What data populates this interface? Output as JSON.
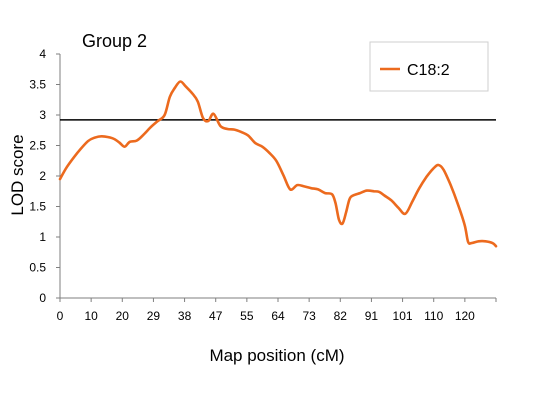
{
  "chart_data": {
    "type": "line",
    "title": "Group 2",
    "xlabel": "Map position (cM)",
    "ylabel": "LOD score",
    "x_ticks": [
      "0",
      "10",
      "20",
      "29",
      "38",
      "47",
      "55",
      "64",
      "73",
      "82",
      "91",
      "101",
      "110",
      "120"
    ],
    "y_ticks": [
      "0",
      "0.5",
      "1",
      "1.5",
      "2",
      "2.5",
      "3",
      "3.5",
      "4"
    ],
    "xlim": [
      0,
      125
    ],
    "ylim": [
      0,
      4
    ],
    "threshold": 2.92,
    "legend_position": "top-right",
    "grid": false,
    "series": [
      {
        "name": "C18:2",
        "color": "#ec6a1e",
        "x": [
          0,
          2,
          5,
          8,
          10,
          12,
          15,
          17,
          18.5,
          20,
          22,
          24,
          26,
          28,
          30,
          31.5,
          33,
          34.5,
          36,
          38,
          39.5,
          41,
          42.5,
          44,
          46,
          48,
          50,
          52,
          54,
          56,
          58,
          60,
          62,
          64,
          66,
          68,
          70,
          72,
          74,
          76,
          78,
          79,
          80,
          81,
          82,
          83,
          84,
          86,
          88,
          90,
          91.5,
          93,
          95,
          97,
          99,
          101,
          103,
          105,
          107,
          108.5,
          110,
          112,
          114,
          116,
          117,
          118,
          120,
          122,
          124,
          125
        ],
        "values": [
          1.95,
          2.15,
          2.38,
          2.57,
          2.63,
          2.65,
          2.62,
          2.55,
          2.48,
          2.56,
          2.58,
          2.68,
          2.8,
          2.9,
          3.0,
          3.3,
          3.45,
          3.55,
          3.47,
          3.35,
          3.22,
          2.95,
          2.9,
          3.02,
          2.82,
          2.77,
          2.76,
          2.72,
          2.66,
          2.54,
          2.48,
          2.38,
          2.25,
          2.02,
          1.78,
          1.85,
          1.83,
          1.8,
          1.78,
          1.72,
          1.7,
          1.55,
          1.28,
          1.22,
          1.4,
          1.62,
          1.68,
          1.72,
          1.76,
          1.75,
          1.74,
          1.68,
          1.6,
          1.48,
          1.38,
          1.58,
          1.8,
          1.98,
          2.12,
          2.18,
          2.1,
          1.85,
          1.55,
          1.2,
          0.92,
          0.9,
          0.93,
          0.93,
          0.9,
          0.85
        ]
      }
    ]
  }
}
